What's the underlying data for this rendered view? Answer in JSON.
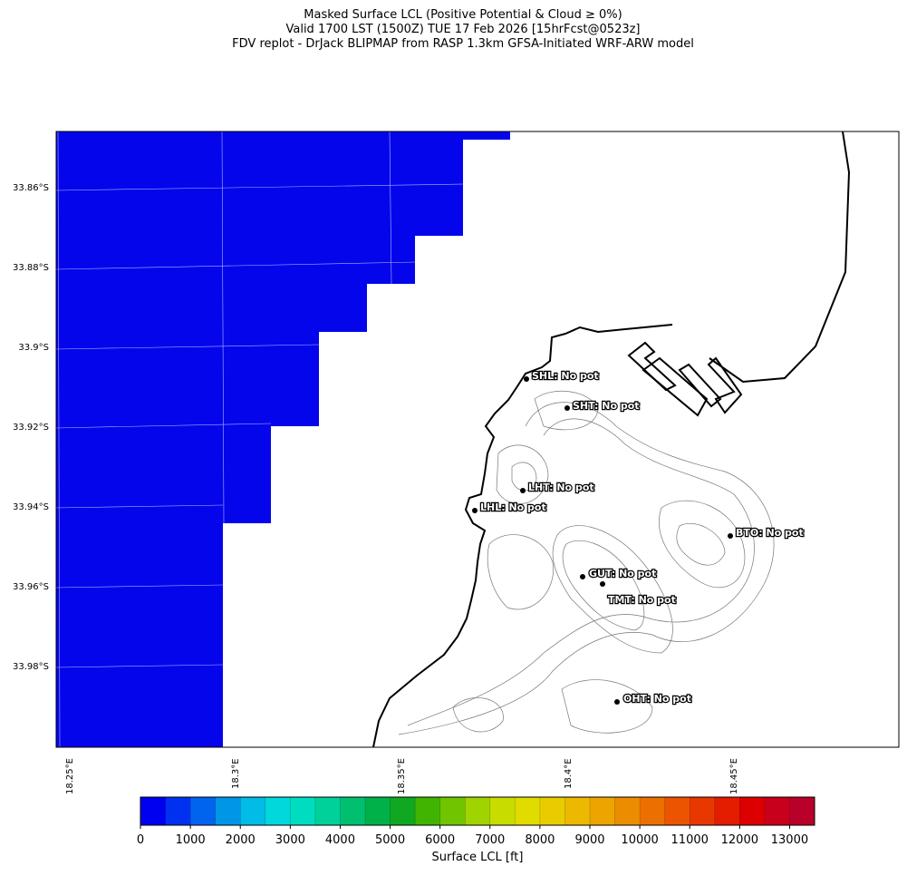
{
  "title": [
    "Masked Surface LCL (Positive Potential & Cloud ≥ 0%)",
    "Valid 1700 LST (1500Z) TUE 17 Feb 2026 [15hrFcst@0523z]",
    "FDV replot - DrJack BLIPMAP from RASP 1.3km GFSA-Initiated WRF-ARW model"
  ],
  "map": {
    "lat_labels": [
      "33.86°S",
      "33.88°S",
      "33.9°S",
      "33.92°S",
      "33.94°S",
      "33.96°S",
      "33.98°S"
    ],
    "lon_labels": [
      "18.25°E",
      "18.3°E",
      "18.35°E",
      "18.4°E",
      "18.45°E"
    ],
    "stations": [
      "SHL: No pot",
      "SHT: No pot",
      "LHT: No pot",
      "LHL: No pot",
      "BTO: No pot",
      "GUT: No pot",
      "TMT: No pot",
      "OHT: No pot"
    ]
  },
  "colorbar": {
    "lim": [
      0,
      13500
    ],
    "ticks": [
      0,
      1000,
      2000,
      3000,
      4000,
      5000,
      6000,
      7000,
      8000,
      9000,
      10000,
      11000,
      12000,
      13000
    ],
    "label": "Surface LCL [ft]",
    "colors": [
      "#0000f0",
      "#0030f0",
      "#0064ee",
      "#0096e8",
      "#00bce6",
      "#00d8dc",
      "#00dcc0",
      "#00d09a",
      "#00c070",
      "#00b048",
      "#10a820",
      "#40b400",
      "#70c400",
      "#a0d400",
      "#c8dc00",
      "#e0dc00",
      "#e8cc00",
      "#ecb800",
      "#eca400",
      "#ec8c00",
      "#ec7000",
      "#ec5400",
      "#e83800",
      "#e41c00",
      "#dc0000",
      "#c8001c",
      "#b8002a"
    ]
  }
}
